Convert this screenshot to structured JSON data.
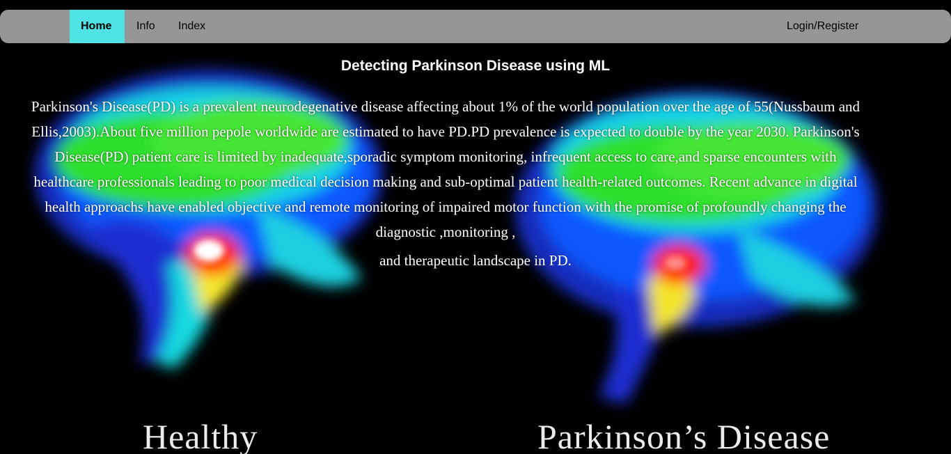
{
  "nav": {
    "items": [
      {
        "label": "Home",
        "active": true
      },
      {
        "label": "Info",
        "active": false
      },
      {
        "label": "Index",
        "active": false
      }
    ],
    "login_label": "Login/Register",
    "bar_color": "#969696",
    "active_color": "#4fe3e3"
  },
  "main": {
    "title": "Detecting Parkinson Disease using ML",
    "intro": "Parkinson's Disease(PD) is a prevalent neurodegenative disease affecting about 1% of the world population over the age of 55(Nussbaum and Ellis,2003).About five million pepole worldwide are estimated to have PD.PD prevalence is expected to double by the year 2030. Parkinson's Disease(PD) patient care is limited by inadequate,sporadic symptom monitoring, infrequent access to care,and sparse encounters with healthcare professionals leading to poor medical decision making and sub-optimal patient health-related outcomes. Recent advance in digital health approachs have enabled objective and remote monitoring of impaired motor function with the promise of profoundly changing the diagnostic ,monitoring ,",
    "intro_tail": "and therapeutic landscape in PD."
  },
  "background": {
    "caption_left": "Healthy",
    "caption_right": "Parkinson’s Disease"
  }
}
